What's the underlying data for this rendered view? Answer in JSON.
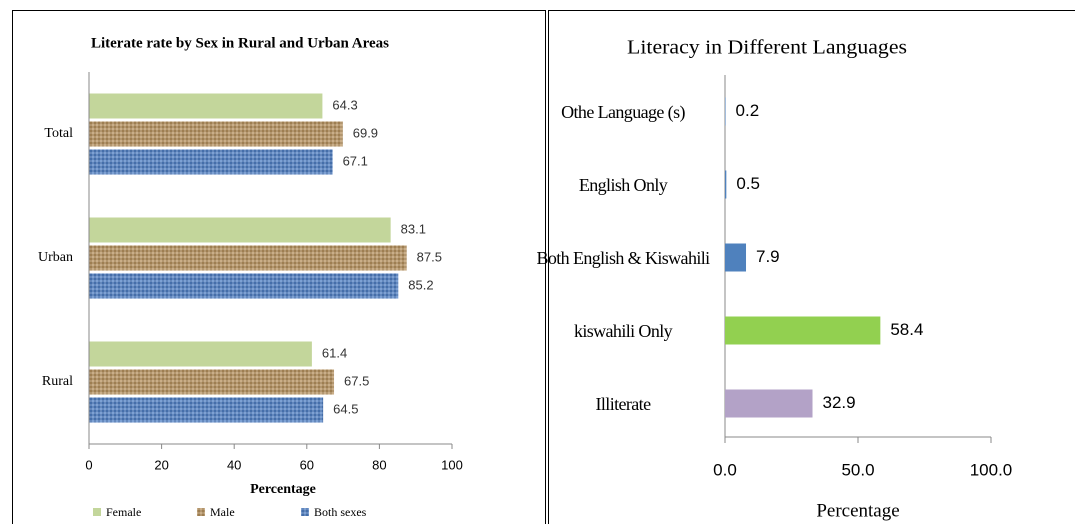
{
  "chart_data": [
    {
      "type": "hbar",
      "title": "Literate rate by Sex in Rural and Urban Areas",
      "categories": [
        "Total",
        "Urban",
        "Rural"
      ],
      "series": [
        {
          "name": "Female",
          "color": "#c3d69b",
          "values": [
            64.3,
            83.1,
            61.4
          ]
        },
        {
          "name": "Male",
          "color": "#b7925e",
          "values": [
            69.9,
            87.5,
            67.5
          ]
        },
        {
          "name": "Both sexes",
          "color": "#4f7fc4",
          "values": [
            67.1,
            85.2,
            64.5
          ]
        }
      ],
      "xlabel": "Percentage",
      "xlim": [
        0,
        100
      ],
      "xticks": [
        0,
        20,
        40,
        60,
        80,
        100
      ],
      "legend": "bottom"
    },
    {
      "type": "hbar-single",
      "title": "Literacy in Different Languages",
      "categories": [
        "Othe Language (s)",
        "English Only",
        "Both English & Kiswahili",
        "kiswahili Only",
        "Illiterate"
      ],
      "values": [
        0.2,
        0.5,
        7.9,
        58.4,
        32.9
      ],
      "colors": [
        "#4f81bd",
        "#4f81bd",
        "#4f81bd",
        "#92d050",
        "#b3a2c7"
      ],
      "xlabel": "Percentage",
      "xlim": [
        0,
        100
      ],
      "xticks": [
        {
          "value": 0,
          "label": "0.0"
        },
        {
          "value": 50,
          "label": "50.0"
        },
        {
          "value": 100,
          "label": "100.0"
        }
      ]
    }
  ]
}
